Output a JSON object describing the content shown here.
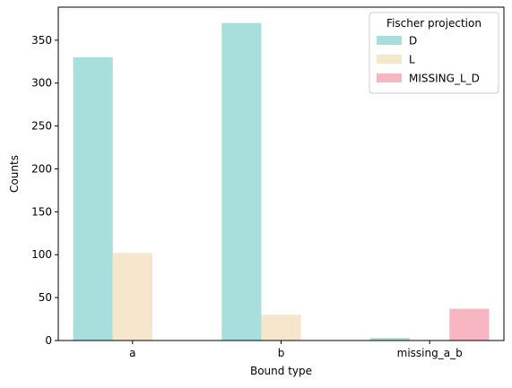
{
  "chart_data": {
    "type": "bar",
    "categories": [
      "a",
      "b",
      "missing_a_b"
    ],
    "series": [
      {
        "name": "D",
        "color": "#a8dfdc",
        "values": [
          330,
          370,
          3
        ]
      },
      {
        "name": "L",
        "color": "#f5e6cc",
        "values": [
          102,
          30,
          0
        ]
      },
      {
        "name": "MISSING_L_D",
        "color": "#f7b6c2",
        "values": [
          0,
          0,
          37
        ]
      }
    ],
    "title": "",
    "xlabel": "Bound type",
    "ylabel": "Counts",
    "ylim": [
      0,
      388.5
    ],
    "yticks": [
      0,
      50,
      100,
      150,
      200,
      250,
      300,
      350
    ],
    "grid": false,
    "legend": {
      "title": "Fischer projection",
      "placement": "top-right"
    }
  }
}
